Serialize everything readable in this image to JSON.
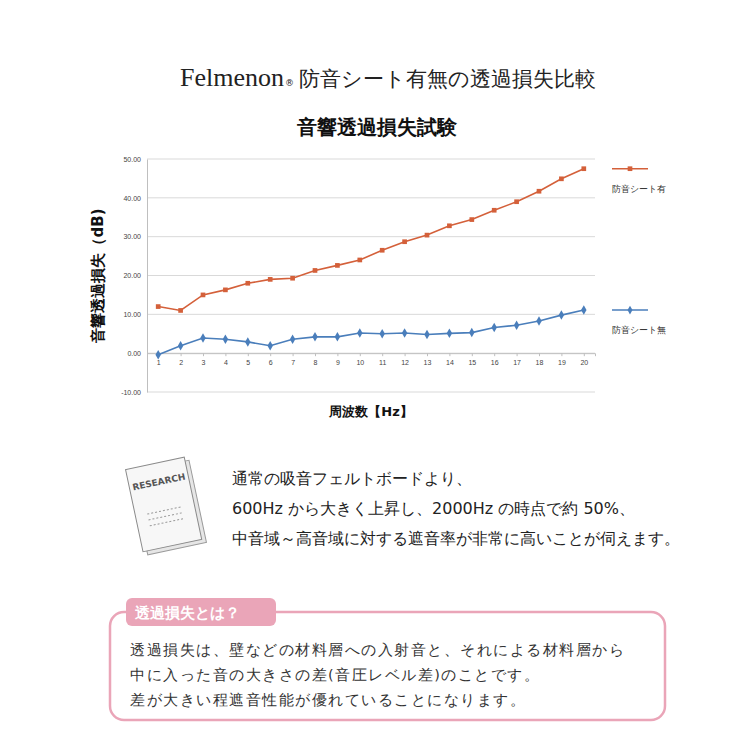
{
  "header": {
    "brand": "Felmenon",
    "brand_mark": "®",
    "title": "防音シート有無の透過損失比較"
  },
  "chart_data": {
    "type": "line",
    "title": "音響透過損失試験",
    "x_label": "周波数【Hz】",
    "y_label": "音響透過損失（dB)",
    "categories": [
      "1",
      "2",
      "3",
      "4",
      "5",
      "6",
      "7",
      "8",
      "9",
      "10",
      "11",
      "12",
      "13",
      "14",
      "15",
      "16",
      "17",
      "18",
      "19",
      "20"
    ],
    "series": [
      {
        "name": "防音シート有",
        "color": "#d4603a",
        "marker": "square",
        "values": [
          12.0,
          11.0,
          15.0,
          16.3,
          18.0,
          19.0,
          19.3,
          21.3,
          22.6,
          24.0,
          26.5,
          28.7,
          30.4,
          32.8,
          34.4,
          36.8,
          39.0,
          41.7,
          44.9,
          47.5
        ]
      },
      {
        "name": "防音シート無",
        "color": "#4a7ebb",
        "marker": "diamond",
        "values": [
          -0.4,
          1.9,
          3.9,
          3.6,
          2.9,
          1.9,
          3.6,
          4.2,
          4.2,
          5.2,
          5.0,
          5.2,
          4.8,
          5.1,
          5.3,
          6.6,
          7.2,
          8.3,
          9.8,
          11.1
        ]
      }
    ],
    "ylim": [
      -10,
      50
    ],
    "yticks": [
      {
        "value": -10,
        "label": "-10.00"
      },
      {
        "value": 0,
        "label": "0.00"
      },
      {
        "value": 10,
        "label": "10.00"
      },
      {
        "value": 20,
        "label": "20.00"
      },
      {
        "value": 30,
        "label": "30.00"
      },
      {
        "value": 40,
        "label": "40.00"
      },
      {
        "value": 50,
        "label": "50.00"
      }
    ],
    "grid": true,
    "legend": "right"
  },
  "note": {
    "icon_label": "RESEARCH",
    "lines": [
      "通常の吸音フェルトボードより、",
      "600Hz から大きく上昇し、2000Hz の時点で約 50%、",
      "中音域～高音域に対する遮音率が非常に高いことが伺えます。"
    ]
  },
  "definition": {
    "heading": "透過損失とは？",
    "lines": [
      "透過損失は、壁などの材料層への入射音と、それによる材料層から",
      "中に入った音の大きさの差(音圧レベル差)のことです。",
      "差が大きい程遮音性能が優れていることになります。"
    ]
  }
}
